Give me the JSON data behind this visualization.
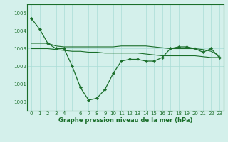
{
  "title": "Graphe pression niveau de la mer (hPa)",
  "bg_color": "#d4f0eb",
  "grid_color": "#aaddd6",
  "line_color": "#1a6e2a",
  "ylim": [
    999.5,
    1005.5
  ],
  "xlim": [
    -0.5,
    23.5
  ],
  "yticks": [
    1000,
    1001,
    1002,
    1003,
    1004,
    1005
  ],
  "main_line_x": [
    0,
    1,
    2,
    3,
    4,
    5,
    6,
    7,
    8,
    9,
    10,
    11,
    12,
    13,
    14,
    15,
    16,
    17,
    18,
    19,
    20,
    21,
    22,
    23
  ],
  "main_line": [
    1004.7,
    1004.1,
    1003.3,
    1003.0,
    1003.0,
    1002.0,
    1000.8,
    1000.1,
    1000.2,
    1000.7,
    1001.6,
    1002.3,
    1002.4,
    1002.4,
    1002.3,
    1002.3,
    1002.5,
    1003.0,
    1003.1,
    1003.1,
    1003.0,
    1002.8,
    1003.0,
    1002.5
  ],
  "flat_line1": [
    1003.3,
    1003.3,
    1003.3,
    1003.15,
    1003.1,
    1003.1,
    1003.1,
    1003.1,
    1003.1,
    1003.1,
    1003.1,
    1003.15,
    1003.15,
    1003.15,
    1003.15,
    1003.1,
    1003.05,
    1003.0,
    1003.0,
    1003.0,
    1003.0,
    1002.95,
    1002.85,
    1002.6
  ],
  "flat_line2": [
    1003.0,
    1003.0,
    1003.0,
    1002.95,
    1002.9,
    1002.85,
    1002.85,
    1002.8,
    1002.8,
    1002.75,
    1002.75,
    1002.75,
    1002.75,
    1002.75,
    1002.7,
    1002.65,
    1002.6,
    1002.6,
    1002.6,
    1002.6,
    1002.6,
    1002.55,
    1002.5,
    1002.5
  ],
  "title_fontsize": 6.0,
  "tick_fontsize": 5.0
}
